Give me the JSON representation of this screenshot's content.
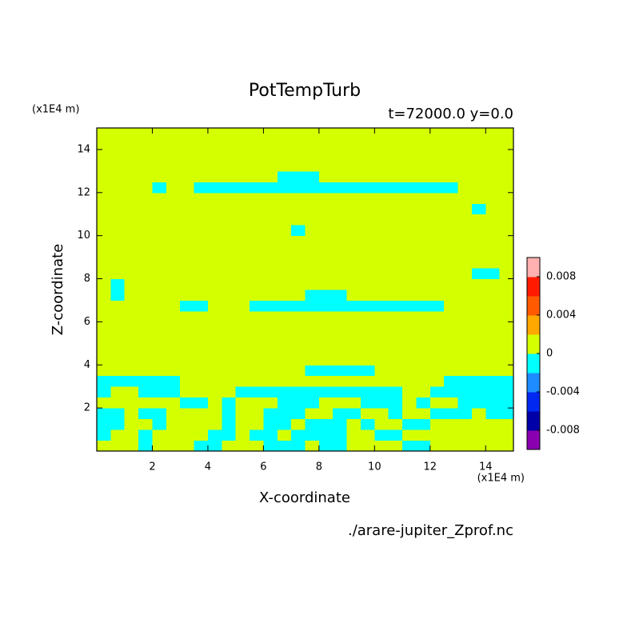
{
  "chart_data": {
    "type": "contour",
    "title": "PotTempTurb",
    "subtitle": "t=72000.0 y=0.0",
    "x_label": "X-coordinate",
    "y_label": "Z-coordinate",
    "x_unit": "(x1E4 m)",
    "y_unit": "(x1E4 m)",
    "source": "./arare-jupiter_Zprof.nc",
    "xlim": [
      0,
      15
    ],
    "ylim": [
      0,
      15
    ],
    "xticks": [
      2,
      4,
      6,
      8,
      10,
      12,
      14
    ],
    "yticks": [
      2,
      4,
      6,
      8,
      10,
      12,
      14
    ],
    "clim": [
      -0.01,
      0.01
    ],
    "cticks": [
      -0.008,
      -0.004,
      0,
      0.004,
      0.008
    ],
    "colors": [
      "#8a00b0",
      "#0000a8",
      "#0028f0",
      "#1e8cff",
      "#00ffff",
      "#d4ff00",
      "#ffa800",
      "#ff5a00",
      "#ff1a00",
      "#ffb0b0"
    ],
    "values": [
      [
        0.001,
        0.001,
        0.001,
        -0.001,
        0.001,
        0.001,
        0.001,
        -0.001,
        -0.001,
        0.001,
        0.001,
        0.001,
        -0.001,
        -0.001,
        -0.001,
        0.001,
        -0.001,
        -0.001,
        0.001,
        0.001,
        0.001,
        0.001,
        -0.001,
        -0.001,
        0.001,
        0.001,
        0.001,
        0.001,
        0.001,
        0.001
      ],
      [
        -0.001,
        0.001,
        0.001,
        -0.001,
        0.001,
        0.001,
        0.001,
        0.001,
        -0.001,
        -0.001,
        0.001,
        -0.001,
        -0.001,
        0.001,
        -0.001,
        -0.001,
        -0.001,
        -0.001,
        0.001,
        0.001,
        -0.001,
        -0.001,
        0.001,
        0.001,
        0.001,
        0.001,
        0.001,
        0.001,
        0.001,
        0.001
      ],
      [
        -0.001,
        -0.001,
        0.001,
        0.001,
        -0.001,
        0.001,
        0.001,
        0.001,
        0.001,
        -0.001,
        0.001,
        0.001,
        -0.001,
        -0.001,
        0.001,
        -0.001,
        -0.001,
        -0.001,
        0.001,
        -0.001,
        0.001,
        0.001,
        -0.001,
        -0.001,
        0.001,
        0.001,
        0.001,
        0.001,
        0.001,
        0.001
      ],
      [
        -0.001,
        -0.001,
        0.001,
        -0.001,
        -0.001,
        0.001,
        0.001,
        0.001,
        0.001,
        -0.001,
        0.001,
        0.001,
        -0.001,
        -0.001,
        -0.001,
        0.001,
        0.001,
        -0.001,
        -0.001,
        0.001,
        0.001,
        -0.001,
        0.001,
        0.001,
        -0.001,
        -0.001,
        -0.001,
        0.001,
        -0.001,
        -0.001
      ],
      [
        0.001,
        0.001,
        0.001,
        0.001,
        0.001,
        0.001,
        -0.001,
        -0.001,
        0.001,
        -0.001,
        0.001,
        0.001,
        0.001,
        -0.001,
        -0.001,
        -0.001,
        0.001,
        0.001,
        0.001,
        -0.001,
        -0.001,
        -0.001,
        0.001,
        -0.001,
        0.001,
        0.001,
        -0.001,
        -0.001,
        -0.001,
        -0.001
      ],
      [
        -0.001,
        0.001,
        0.001,
        -0.001,
        -0.001,
        -0.001,
        0.001,
        0.001,
        0.001,
        0.001,
        -0.001,
        -0.001,
        -0.001,
        -0.001,
        -0.001,
        -0.001,
        -0.001,
        -0.001,
        -0.001,
        -0.001,
        -0.001,
        -0.001,
        0.001,
        0.001,
        -0.001,
        -0.001,
        -0.001,
        -0.001,
        -0.001,
        -0.001
      ],
      [
        -0.001,
        -0.001,
        -0.001,
        -0.001,
        -0.001,
        -0.001,
        0.001,
        0.001,
        0.001,
        0.001,
        0.001,
        0.001,
        0.001,
        0.001,
        0.001,
        0.001,
        0.001,
        0.001,
        0.001,
        0.001,
        0.001,
        0.001,
        0.001,
        0.001,
        0.001,
        -0.001,
        -0.001,
        -0.001,
        -0.001,
        -0.001
      ],
      [
        0.001,
        0.001,
        0.001,
        0.001,
        0.001,
        0.001,
        0.001,
        0.001,
        0.001,
        0.001,
        0.001,
        0.001,
        0.001,
        0.001,
        0.001,
        -0.001,
        -0.001,
        -0.001,
        -0.001,
        -0.001,
        0.001,
        0.001,
        0.001,
        0.001,
        0.001,
        0.001,
        0.001,
        0.001,
        0.001,
        0.001
      ],
      [
        0.001,
        0.001,
        0.001,
        0.001,
        0.001,
        0.001,
        0.001,
        0.001,
        0.001,
        0.001,
        0.001,
        0.001,
        0.001,
        0.001,
        0.001,
        0.001,
        0.001,
        0.001,
        0.001,
        0.001,
        0.001,
        0.001,
        0.001,
        0.001,
        0.001,
        0.001,
        0.001,
        0.001,
        0.001,
        0.001
      ],
      [
        0.001,
        0.001,
        0.001,
        0.001,
        0.001,
        0.001,
        0.001,
        0.001,
        0.001,
        0.001,
        0.001,
        0.001,
        0.001,
        0.001,
        0.001,
        0.001,
        0.001,
        0.001,
        0.001,
        0.001,
        0.001,
        0.001,
        0.001,
        0.001,
        0.001,
        0.001,
        0.001,
        0.001,
        0.001,
        0.001
      ],
      [
        0.001,
        0.001,
        0.001,
        0.001,
        0.001,
        0.001,
        0.001,
        0.001,
        0.001,
        0.001,
        0.001,
        0.001,
        0.001,
        0.001,
        0.001,
        0.001,
        0.001,
        0.001,
        0.001,
        0.001,
        0.001,
        0.001,
        0.001,
        0.001,
        0.001,
        0.001,
        0.001,
        0.001,
        0.001,
        0.001
      ],
      [
        0.001,
        0.001,
        0.001,
        0.001,
        0.001,
        0.001,
        0.001,
        0.001,
        0.001,
        0.001,
        0.001,
        0.001,
        0.001,
        0.001,
        0.001,
        0.001,
        0.001,
        0.001,
        0.001,
        0.001,
        0.001,
        0.001,
        0.001,
        0.001,
        0.001,
        0.001,
        0.001,
        0.001,
        0.001,
        0.001
      ],
      [
        0.001,
        0.001,
        0.001,
        0.001,
        0.001,
        0.001,
        0.001,
        0.001,
        0.001,
        0.001,
        0.001,
        0.001,
        0.001,
        0.001,
        0.001,
        0.001,
        0.001,
        0.001,
        0.001,
        0.001,
        0.001,
        0.001,
        0.001,
        0.001,
        0.001,
        0.001,
        0.001,
        0.001,
        0.001,
        0.001
      ],
      [
        0.001,
        0.001,
        0.001,
        0.001,
        0.001,
        0.001,
        -0.001,
        -0.001,
        0.001,
        0.001,
        0.001,
        -0.001,
        -0.001,
        -0.001,
        -0.001,
        -0.001,
        -0.001,
        -0.001,
        -0.001,
        -0.001,
        -0.001,
        -0.001,
        -0.001,
        -0.001,
        -0.001,
        0.001,
        0.001,
        0.001,
        0.001,
        0.001
      ],
      [
        0.001,
        -0.001,
        0.001,
        0.001,
        0.001,
        0.001,
        0.001,
        0.001,
        0.001,
        0.001,
        0.001,
        0.001,
        0.001,
        0.001,
        0.001,
        -0.001,
        -0.001,
        -0.001,
        0.001,
        0.001,
        0.001,
        0.001,
        0.001,
        0.001,
        0.001,
        0.001,
        0.001,
        0.001,
        0.001,
        0.001
      ],
      [
        0.001,
        -0.001,
        0.001,
        0.001,
        0.001,
        0.001,
        0.001,
        0.001,
        0.001,
        0.001,
        0.001,
        0.001,
        0.001,
        0.001,
        0.001,
        0.001,
        0.001,
        0.001,
        0.001,
        0.001,
        0.001,
        0.001,
        0.001,
        0.001,
        0.001,
        0.001,
        0.001,
        0.001,
        0.001,
        0.001
      ],
      [
        0.001,
        0.001,
        0.001,
        0.001,
        0.001,
        0.001,
        0.001,
        0.001,
        0.001,
        0.001,
        0.001,
        0.001,
        0.001,
        0.001,
        0.001,
        0.001,
        0.001,
        0.001,
        0.001,
        0.001,
        0.001,
        0.001,
        0.001,
        0.001,
        0.001,
        0.001,
        0.001,
        -0.001,
        -0.001,
        0.001
      ],
      [
        0.001,
        0.001,
        0.001,
        0.001,
        0.001,
        0.001,
        0.001,
        0.001,
        0.001,
        0.001,
        0.001,
        0.001,
        0.001,
        0.001,
        0.001,
        0.001,
        0.001,
        0.001,
        0.001,
        0.001,
        0.001,
        0.001,
        0.001,
        0.001,
        0.001,
        0.001,
        0.001,
        0.001,
        0.001,
        0.001
      ],
      [
        0.001,
        0.001,
        0.001,
        0.001,
        0.001,
        0.001,
        0.001,
        0.001,
        0.001,
        0.001,
        0.001,
        0.001,
        0.001,
        0.001,
        0.001,
        0.001,
        0.001,
        0.001,
        0.001,
        0.001,
        0.001,
        0.001,
        0.001,
        0.001,
        0.001,
        0.001,
        0.001,
        0.001,
        0.001,
        0.001
      ],
      [
        0.001,
        0.001,
        0.001,
        0.001,
        0.001,
        0.001,
        0.001,
        0.001,
        0.001,
        0.001,
        0.001,
        0.001,
        0.001,
        0.001,
        0.001,
        0.001,
        0.001,
        0.001,
        0.001,
        0.001,
        0.001,
        0.001,
        0.001,
        0.001,
        0.001,
        0.001,
        0.001,
        0.001,
        0.001,
        0.001
      ],
      [
        0.001,
        0.001,
        0.001,
        0.001,
        0.001,
        0.001,
        0.001,
        0.001,
        0.001,
        0.001,
        0.001,
        0.001,
        0.001,
        0.001,
        -0.001,
        0.001,
        0.001,
        0.001,
        0.001,
        0.001,
        0.001,
        0.001,
        0.001,
        0.001,
        0.001,
        0.001,
        0.001,
        0.001,
        0.001,
        0.001
      ],
      [
        0.001,
        0.001,
        0.001,
        0.001,
        0.001,
        0.001,
        0.001,
        0.001,
        0.001,
        0.001,
        0.001,
        0.001,
        0.001,
        0.001,
        0.001,
        0.001,
        0.001,
        0.001,
        0.001,
        0.001,
        0.001,
        0.001,
        0.001,
        0.001,
        0.001,
        0.001,
        0.001,
        0.001,
        0.001,
        0.001
      ],
      [
        0.001,
        0.001,
        0.001,
        0.001,
        0.001,
        0.001,
        0.001,
        0.001,
        0.001,
        0.001,
        0.001,
        0.001,
        0.001,
        0.001,
        0.001,
        0.001,
        0.001,
        0.001,
        0.001,
        0.001,
        0.001,
        0.001,
        0.001,
        0.001,
        0.001,
        0.001,
        0.001,
        -0.001,
        0.001,
        0.001
      ],
      [
        0.001,
        0.001,
        0.001,
        0.001,
        0.001,
        0.001,
        0.001,
        0.001,
        0.001,
        0.001,
        0.001,
        0.001,
        0.001,
        0.001,
        0.001,
        0.001,
        0.001,
        0.001,
        0.001,
        0.001,
        0.001,
        0.001,
        0.001,
        0.001,
        0.001,
        0.001,
        0.001,
        0.001,
        0.001,
        0.001
      ],
      [
        0.001,
        0.001,
        0.001,
        0.001,
        -0.001,
        0.001,
        0.001,
        -0.001,
        -0.001,
        -0.001,
        -0.001,
        -0.001,
        -0.001,
        -0.001,
        -0.001,
        -0.001,
        -0.001,
        -0.001,
        -0.001,
        -0.001,
        -0.001,
        -0.001,
        -0.001,
        -0.001,
        -0.001,
        -0.001,
        0.001,
        0.001,
        0.001,
        0.001
      ],
      [
        0.001,
        0.001,
        0.001,
        0.001,
        0.001,
        0.001,
        0.001,
        0.001,
        0.001,
        0.001,
        0.001,
        0.001,
        0.001,
        -0.001,
        -0.001,
        -0.001,
        0.001,
        0.001,
        0.001,
        0.001,
        0.001,
        0.001,
        0.001,
        0.001,
        0.001,
        0.001,
        0.001,
        0.001,
        0.001,
        0.001
      ],
      [
        0.001,
        0.001,
        0.001,
        0.001,
        0.001,
        0.001,
        0.001,
        0.001,
        0.001,
        0.001,
        0.001,
        0.001,
        0.001,
        0.001,
        0.001,
        0.001,
        0.001,
        0.001,
        0.001,
        0.001,
        0.001,
        0.001,
        0.001,
        0.001,
        0.001,
        0.001,
        0.001,
        0.001,
        0.001,
        0.001
      ],
      [
        0.001,
        0.001,
        0.001,
        0.001,
        0.001,
        0.001,
        0.001,
        0.001,
        0.001,
        0.001,
        0.001,
        0.001,
        0.001,
        0.001,
        0.001,
        0.001,
        0.001,
        0.001,
        0.001,
        0.001,
        0.001,
        0.001,
        0.001,
        0.001,
        0.001,
        0.001,
        0.001,
        0.001,
        0.001,
        0.001
      ],
      [
        0.001,
        0.001,
        0.001,
        0.001,
        0.001,
        0.001,
        0.001,
        0.001,
        0.001,
        0.001,
        0.001,
        0.001,
        0.001,
        0.001,
        0.001,
        0.001,
        0.001,
        0.001,
        0.001,
        0.001,
        0.001,
        0.001,
        0.001,
        0.001,
        0.001,
        0.001,
        0.001,
        0.001,
        0.001,
        0.001
      ],
      [
        0.001,
        0.001,
        0.001,
        0.001,
        0.001,
        0.001,
        0.001,
        0.001,
        0.001,
        0.001,
        0.001,
        0.001,
        0.001,
        0.001,
        0.001,
        0.001,
        0.001,
        0.001,
        0.001,
        0.001,
        0.001,
        0.001,
        0.001,
        0.001,
        0.001,
        0.001,
        0.001,
        0.001,
        0.001,
        0.001
      ]
    ]
  }
}
